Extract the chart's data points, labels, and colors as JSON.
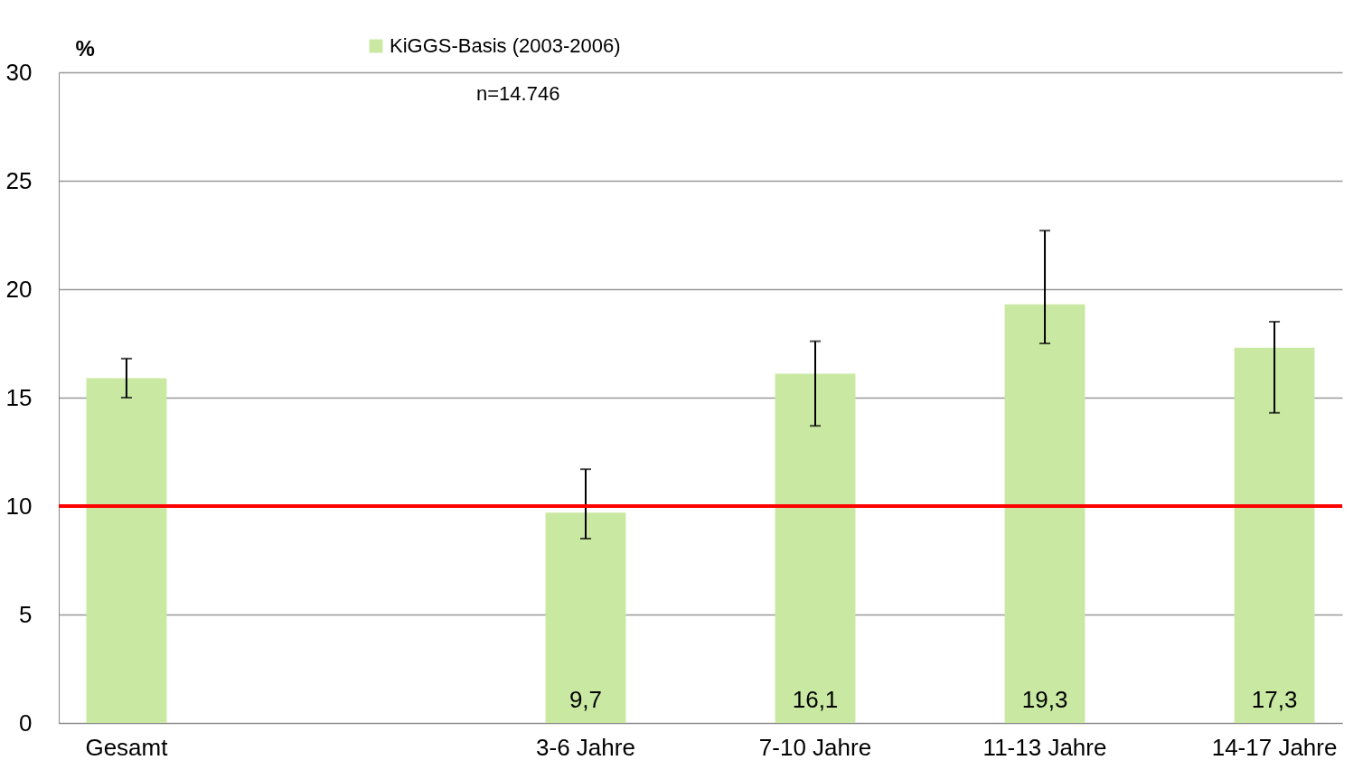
{
  "chart_data": {
    "type": "bar",
    "ylabel": "%",
    "categories": [
      "Gesamt",
      null,
      "3-6 Jahre",
      "7-10 Jahre",
      "11-13 Jahre",
      "14-17 Jahre"
    ],
    "series": [
      {
        "name": "KiGGS-Basis (2003-2006)",
        "color": "#c9e9a2",
        "values": [
          15.9,
          null,
          9.7,
          16.1,
          19.3,
          17.3
        ],
        "errors": [
          [
            15.0,
            16.8
          ],
          null,
          [
            8.5,
            11.7
          ],
          [
            13.7,
            17.6
          ],
          [
            17.5,
            22.7
          ],
          [
            14.3,
            18.5
          ]
        ],
        "value_labels": [
          null,
          null,
          "9,7",
          "16,1",
          "19,3",
          "17,3"
        ]
      }
    ],
    "ylim": [
      0,
      30
    ],
    "yticks": [
      0,
      5,
      10,
      15,
      20,
      25,
      30
    ],
    "grid": "y",
    "legend": "top",
    "ref_lines": [
      {
        "axis": "y",
        "value": 10,
        "color": "#ff0000"
      }
    ],
    "annotations": [
      "n=14.746"
    ]
  }
}
